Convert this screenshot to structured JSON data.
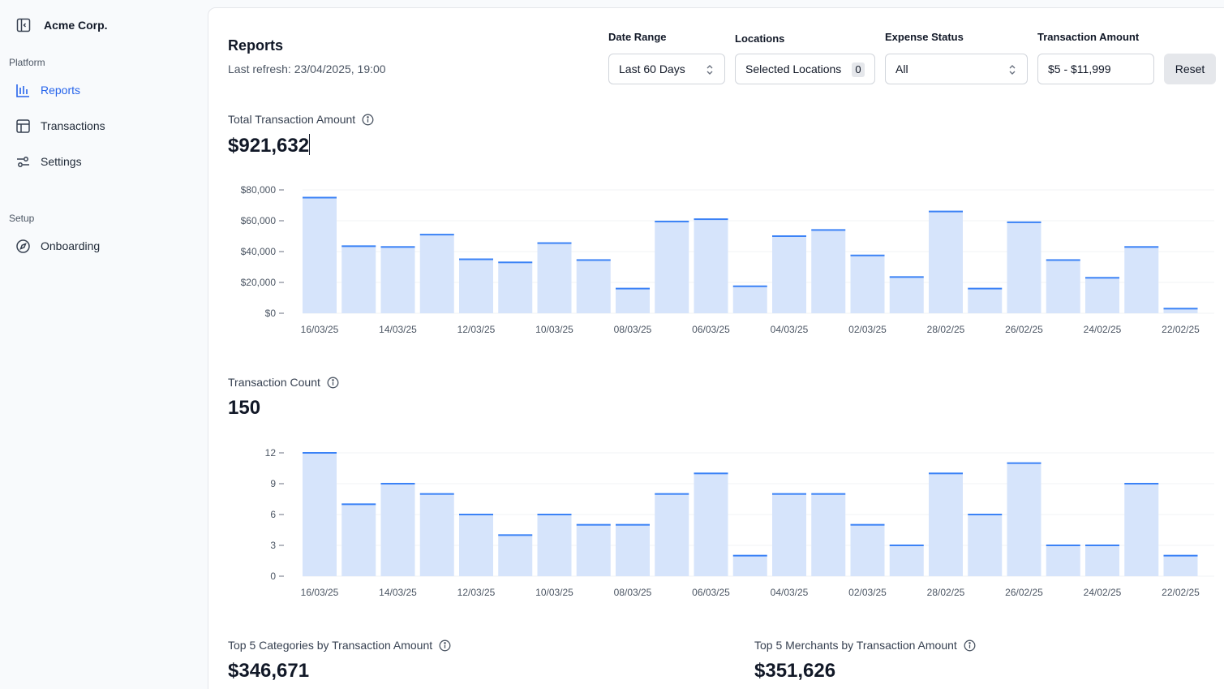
{
  "sidebar": {
    "brand": "Acme Corp.",
    "sections": [
      {
        "label": "Platform"
      },
      {
        "label": "Setup"
      }
    ],
    "items": [
      {
        "label": "Reports",
        "icon": "bar-chart-icon",
        "active": true
      },
      {
        "label": "Transactions",
        "icon": "table-icon",
        "active": false
      },
      {
        "label": "Settings",
        "icon": "sliders-icon",
        "active": false
      },
      {
        "label": "Onboarding",
        "icon": "compass-icon",
        "active": false
      }
    ]
  },
  "header": {
    "title": "Reports",
    "refresh": "Last refresh: 23/04/2025, 19:00"
  },
  "filters": {
    "date_range": {
      "label": "Date Range",
      "value": "Last 60 Days"
    },
    "locations": {
      "label": "Locations",
      "value": "Selected Locations",
      "count": "0"
    },
    "expense_status": {
      "label": "Expense Status",
      "value": "All"
    },
    "transaction_amount": {
      "label": "Transaction Amount",
      "value": "$5 - $11,999"
    },
    "reset_label": "Reset"
  },
  "metrics": {
    "total_amount": {
      "label": "Total Transaction Amount",
      "value": "$921,632"
    },
    "count": {
      "label": "Transaction Count",
      "value": "150"
    },
    "top_categories": {
      "label": "Top 5 Categories by Transaction Amount",
      "value": "$346,671"
    },
    "top_merchants": {
      "label": "Top 5 Merchants by Transaction Amount",
      "value": "$351,626"
    }
  },
  "colors": {
    "accent": "#2563eb",
    "bar_fill": "#d6e4fb",
    "bar_top": "#3b82f6"
  },
  "chart_data": [
    {
      "type": "bar",
      "title": "Total Transaction Amount",
      "ylim": [
        0,
        80000
      ],
      "yticks": [
        "$0",
        "$20,000",
        "$40,000",
        "$60,000",
        "$80,000"
      ],
      "ytick_values": [
        0,
        20000,
        40000,
        60000,
        80000
      ],
      "xtick_labels": [
        "16/03/25",
        "14/03/25",
        "12/03/25",
        "10/03/25",
        "08/03/25",
        "06/03/25",
        "04/03/25",
        "02/03/25",
        "28/02/25",
        "26/02/25",
        "24/02/25",
        "22/02/25"
      ],
      "values": [
        75000,
        43500,
        43000,
        51000,
        35000,
        33000,
        45500,
        34500,
        16000,
        59500,
        61000,
        17500,
        50000,
        54000,
        37500,
        23500,
        66000,
        16000,
        59000,
        34500,
        23000,
        43000,
        3000
      ]
    },
    {
      "type": "bar",
      "title": "Transaction Count",
      "ylim": [
        0,
        12
      ],
      "yticks": [
        "0",
        "3",
        "6",
        "9",
        "12"
      ],
      "ytick_values": [
        0,
        3,
        6,
        9,
        12
      ],
      "xtick_labels": [
        "16/03/25",
        "14/03/25",
        "12/03/25",
        "10/03/25",
        "08/03/25",
        "06/03/25",
        "04/03/25",
        "02/03/25",
        "28/02/25",
        "26/02/25",
        "24/02/25",
        "22/02/25"
      ],
      "values": [
        12,
        7,
        9,
        8,
        6,
        4,
        6,
        5,
        5,
        8,
        10,
        2,
        8,
        8,
        5,
        3,
        10,
        6,
        11,
        3,
        3,
        9,
        2
      ]
    }
  ]
}
